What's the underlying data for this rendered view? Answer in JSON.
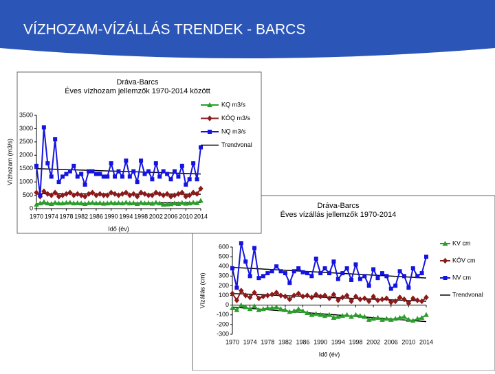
{
  "header": {
    "title": "VÍZHOZAM-VÍZÁLLÁS TRENDEK - BARCS"
  },
  "chart_data": [
    {
      "type": "line",
      "title": [
        "Dráva-Barcs",
        "Éves vízhozam jellemzők 1970-2014 között"
      ],
      "x_label": "Idő (év)",
      "y_label": "Vízhozam (m3/s)",
      "x": [
        1970,
        1971,
        1972,
        1973,
        1974,
        1975,
        1976,
        1977,
        1978,
        1979,
        1980,
        1981,
        1982,
        1983,
        1984,
        1985,
        1986,
        1987,
        1988,
        1989,
        1990,
        1991,
        1992,
        1993,
        1994,
        1995,
        1996,
        1997,
        1998,
        1999,
        2000,
        2001,
        2002,
        2003,
        2004,
        2005,
        2006,
        2007,
        2008,
        2009,
        2010,
        2011,
        2012,
        2013,
        2014
      ],
      "xlim": [
        1970,
        2014
      ],
      "xticks": [
        1970,
        1974,
        1978,
        1982,
        1986,
        1990,
        1994,
        1998,
        2002,
        2006,
        2010,
        2014
      ],
      "ylim": [
        0,
        3500
      ],
      "yticks": [
        0,
        500,
        1000,
        1500,
        2000,
        2500,
        3000,
        3500
      ],
      "series": [
        {
          "name": "KQ m3/s",
          "color": "#2a9d2a",
          "marker": "triangle",
          "values": [
            150,
            200,
            250,
            200,
            180,
            220,
            200,
            200,
            220,
            230,
            200,
            210,
            200,
            180,
            210,
            220,
            200,
            210,
            190,
            200,
            220,
            200,
            210,
            200,
            230,
            200,
            210,
            180,
            220,
            200,
            210,
            190,
            230,
            200,
            150,
            160,
            170,
            200,
            180,
            220,
            190,
            200,
            230,
            210,
            300
          ]
        },
        {
          "name": "KÖQ m3/s",
          "color": "#8b1a1a",
          "marker": "diamond",
          "values": [
            600,
            450,
            650,
            550,
            500,
            600,
            450,
            500,
            550,
            600,
            500,
            550,
            500,
            450,
            550,
            600,
            500,
            550,
            500,
            500,
            600,
            550,
            500,
            550,
            600,
            500,
            550,
            450,
            600,
            550,
            500,
            500,
            600,
            550,
            500,
            550,
            450,
            500,
            550,
            600,
            450,
            500,
            600,
            550,
            750
          ]
        },
        {
          "name": "NQ m3/s",
          "color": "#1414e0",
          "marker": "square",
          "values": [
            1600,
            500,
            3050,
            1700,
            1200,
            2600,
            1000,
            1200,
            1300,
            1400,
            1600,
            1200,
            1300,
            900,
            1400,
            1400,
            1300,
            1300,
            1200,
            1200,
            1700,
            1200,
            1400,
            1200,
            1800,
            1200,
            1400,
            1000,
            1800,
            1300,
            1400,
            1100,
            1700,
            1200,
            1400,
            1300,
            1100,
            1400,
            1200,
            1600,
            900,
            1100,
            1700,
            1100,
            2300
          ]
        }
      ],
      "trend": {
        "name": "Trendvonal",
        "color": "#000000",
        "lines": [
          {
            "x": [
              1970,
              2014
            ],
            "values": [
              180,
              230
            ]
          },
          {
            "x": [
              1970,
              2014
            ],
            "values": [
              560,
              540
            ]
          },
          {
            "x": [
              1970,
              2014
            ],
            "values": [
              1500,
              1300
            ]
          }
        ]
      }
    },
    {
      "type": "line",
      "title": [
        "Dráva-Barcs",
        "Éves vízállás jellemzők 1970-2014"
      ],
      "x_label": "Idő (év)",
      "y_label": "Vízállás (cm)",
      "x": [
        1970,
        1971,
        1972,
        1973,
        1974,
        1975,
        1976,
        1977,
        1978,
        1979,
        1980,
        1981,
        1982,
        1983,
        1984,
        1985,
        1986,
        1987,
        1988,
        1989,
        1990,
        1991,
        1992,
        1993,
        1994,
        1995,
        1996,
        1997,
        1998,
        1999,
        2000,
        2001,
        2002,
        2003,
        2004,
        2005,
        2006,
        2007,
        2008,
        2009,
        2010,
        2011,
        2012,
        2013,
        2014
      ],
      "xlim": [
        1970,
        2014
      ],
      "xticks": [
        1970,
        1974,
        1978,
        1982,
        1986,
        1990,
        1994,
        1998,
        2002,
        2006,
        2010,
        2014
      ],
      "ylim": [
        -300,
        600
      ],
      "yticks": [
        -300,
        -200,
        -100,
        0,
        100,
        200,
        300,
        400,
        500,
        600
      ],
      "series": [
        {
          "name": "KV cm",
          "color": "#2a9d2a",
          "marker": "triangle",
          "values": [
            -30,
            -50,
            0,
            -20,
            -40,
            -10,
            -50,
            -40,
            -30,
            -30,
            -20,
            -40,
            -50,
            -70,
            -60,
            -40,
            -60,
            -80,
            -100,
            -90,
            -100,
            -110,
            -100,
            -130,
            -120,
            -110,
            -100,
            -120,
            -100,
            -110,
            -120,
            -150,
            -140,
            -130,
            -150,
            -140,
            -150,
            -140,
            -130,
            -120,
            -150,
            -160,
            -140,
            -130,
            -100
          ]
        },
        {
          "name": "KÖV cm",
          "color": "#8b1a1a",
          "marker": "diamond",
          "values": [
            120,
            50,
            150,
            100,
            80,
            130,
            70,
            90,
            100,
            110,
            130,
            100,
            90,
            60,
            100,
            120,
            90,
            100,
            80,
            110,
            90,
            100,
            70,
            110,
            50,
            80,
            100,
            40,
            90,
            60,
            70,
            40,
            90,
            50,
            60,
            70,
            30,
            40,
            80,
            60,
            20,
            70,
            50,
            40,
            80
          ]
        },
        {
          "name": "NV cm",
          "color": "#1414e0",
          "marker": "square",
          "values": [
            380,
            180,
            640,
            450,
            300,
            590,
            280,
            300,
            330,
            350,
            400,
            350,
            330,
            230,
            350,
            380,
            340,
            330,
            300,
            480,
            330,
            380,
            330,
            450,
            270,
            330,
            380,
            260,
            420,
            270,
            300,
            200,
            370,
            280,
            330,
            300,
            170,
            200,
            350,
            300,
            180,
            380,
            300,
            330,
            500
          ]
        }
      ],
      "trend": {
        "name": "Trendvonal",
        "color": "#000000",
        "lines": [
          {
            "x": [
              1970,
              2014
            ],
            "values": [
              -20,
              -170
            ]
          },
          {
            "x": [
              1970,
              2014
            ],
            "values": [
              120,
              40
            ]
          },
          {
            "x": [
              1970,
              2014
            ],
            "values": [
              390,
              280
            ]
          }
        ]
      }
    }
  ]
}
